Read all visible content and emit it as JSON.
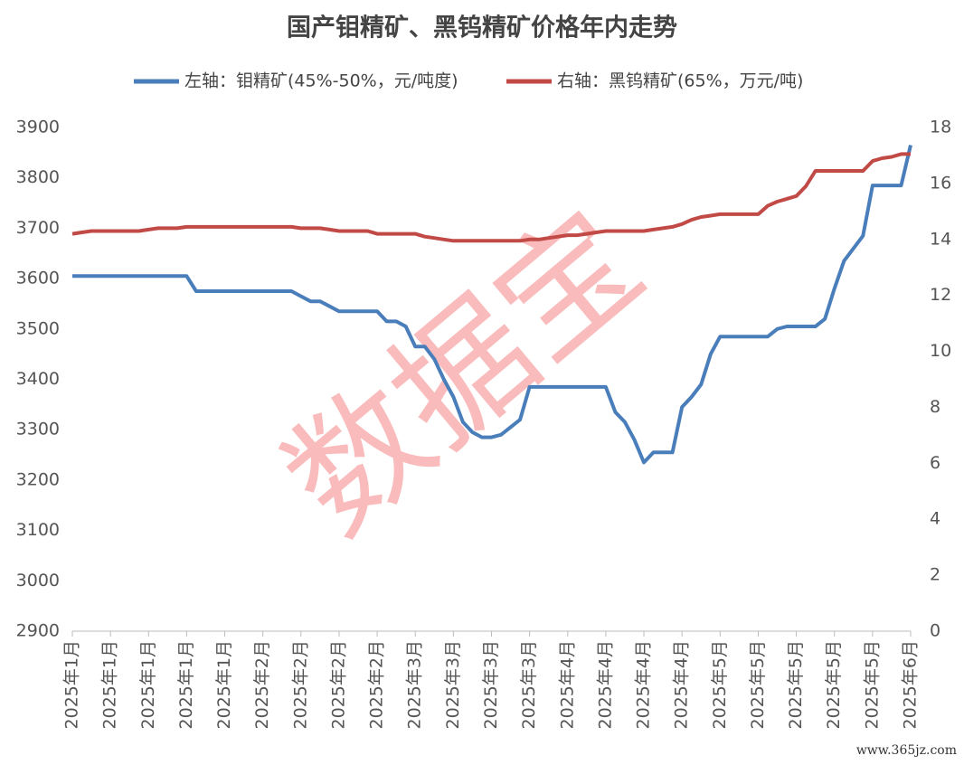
{
  "chart_data": {
    "type": "line",
    "title": "国产钼精矿、黑钨精矿价格年内走势",
    "watermark": "数据宝",
    "source_mark": "www.365jz.com",
    "categories": [
      "2025年1月",
      null,
      null,
      null,
      "2025年1月",
      null,
      null,
      null,
      "2025年1月",
      null,
      null,
      null,
      "2025年1月",
      null,
      null,
      null,
      "2025年1月",
      null,
      null,
      null,
      "2025年2月",
      null,
      null,
      null,
      "2025年2月",
      null,
      null,
      null,
      "2025年2月",
      null,
      null,
      null,
      "2025年2月",
      null,
      null,
      null,
      "2025年3月",
      null,
      null,
      null,
      "2025年3月",
      null,
      null,
      null,
      "2025年3月",
      null,
      null,
      null,
      "2025年3月",
      null,
      null,
      null,
      "2025年4月",
      null,
      null,
      null,
      "2025年4月",
      null,
      null,
      null,
      "2025年4月",
      null,
      null,
      null,
      "2025年4月",
      null,
      null,
      null,
      "2025年5月",
      null,
      null,
      null,
      "2025年5月",
      null,
      null,
      null,
      "2025年5月",
      null,
      null,
      null,
      "2025年5月",
      null,
      null,
      null,
      "2025年5月",
      null,
      null,
      null,
      "2025年6月"
    ],
    "series": [
      {
        "name": "左轴：钼精矿(45%-50%，元/吨度)",
        "color": "#4a7ebb",
        "axis": "y",
        "values": [
          3605,
          3605,
          3605,
          3605,
          3605,
          3605,
          3605,
          3605,
          3605,
          3605,
          3605,
          3605,
          3605,
          3575,
          3575,
          3575,
          3575,
          3575,
          3575,
          3575,
          3575,
          3575,
          3575,
          3575,
          3565,
          3555,
          3555,
          3545,
          3535,
          3535,
          3535,
          3535,
          3535,
          3515,
          3515,
          3505,
          3465,
          3465,
          3440,
          3400,
          3365,
          3315,
          3295,
          3285,
          3285,
          3290,
          3305,
          3320,
          3385,
          3385,
          3385,
          3385,
          3385,
          3385,
          3385,
          3385,
          3385,
          3335,
          3315,
          3280,
          3235,
          3255,
          3255,
          3255,
          3345,
          3365,
          3390,
          3450,
          3485,
          3485,
          3485,
          3485,
          3485,
          3485,
          3500,
          3505,
          3505,
          3505,
          3505,
          3520,
          3580,
          3635,
          3660,
          3685,
          3785,
          3785,
          3785,
          3785,
          3865
        ]
      },
      {
        "name": "右轴：黑钨精矿(65%，万元/吨)",
        "color": "#c24a46",
        "axis": "y2",
        "values": [
          14.2,
          14.25,
          14.3,
          14.3,
          14.3,
          14.3,
          14.3,
          14.3,
          14.35,
          14.4,
          14.4,
          14.4,
          14.45,
          14.45,
          14.45,
          14.45,
          14.45,
          14.45,
          14.45,
          14.45,
          14.45,
          14.45,
          14.45,
          14.45,
          14.4,
          14.4,
          14.4,
          14.35,
          14.3,
          14.3,
          14.3,
          14.3,
          14.2,
          14.2,
          14.2,
          14.2,
          14.2,
          14.1,
          14.05,
          14.0,
          13.95,
          13.95,
          13.95,
          13.95,
          13.95,
          13.95,
          13.95,
          13.95,
          14.0,
          14.0,
          14.05,
          14.1,
          14.15,
          14.15,
          14.2,
          14.25,
          14.3,
          14.3,
          14.3,
          14.3,
          14.3,
          14.35,
          14.4,
          14.45,
          14.55,
          14.7,
          14.8,
          14.85,
          14.9,
          14.9,
          14.9,
          14.9,
          14.9,
          15.2,
          15.35,
          15.45,
          15.55,
          15.9,
          16.45,
          16.45,
          16.45,
          16.45,
          16.45,
          16.45,
          16.8,
          16.9,
          16.95,
          17.05,
          17.05
        ]
      }
    ],
    "ylim": [
      2900,
      3900
    ],
    "yticks": [
      2900,
      3000,
      3100,
      3200,
      3300,
      3400,
      3500,
      3600,
      3700,
      3800,
      3900
    ],
    "y2lim": [
      0,
      18
    ],
    "y2ticks": [
      0,
      2,
      4,
      6,
      8,
      10,
      12,
      14,
      16,
      18
    ],
    "grid": false
  }
}
